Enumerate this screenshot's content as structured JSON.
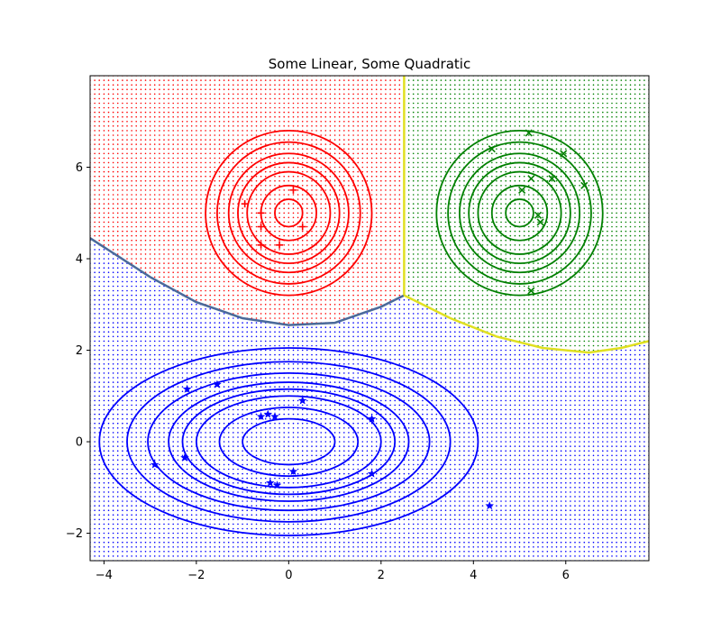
{
  "chart_data": {
    "type": "scatter",
    "title": "Some Linear, Some Quadratic",
    "xlabel": "",
    "ylabel": "",
    "xlim": [
      -4.3,
      7.8
    ],
    "ylim": [
      -2.6,
      8.0
    ],
    "x_ticks": [
      -4,
      -2,
      0,
      2,
      4,
      6
    ],
    "y_ticks": [
      -2,
      0,
      2,
      4,
      6
    ],
    "x_tick_labels": [
      "−4",
      "−2",
      "0",
      "2",
      "4",
      "6"
    ],
    "y_tick_labels": [
      "−2",
      "0",
      "2",
      "4",
      "6"
    ],
    "grid": false,
    "regions": [
      {
        "class": "red",
        "color": "#ff0000",
        "description": "upper-left decision region"
      },
      {
        "class": "green",
        "color": "#008000",
        "description": "upper-right decision region"
      },
      {
        "class": "blue",
        "color": "#0000ff",
        "description": "lower decision region"
      }
    ],
    "boundaries": {
      "red_blue": {
        "color": "#4a6a9a",
        "points": [
          [
            -4.3,
            4.45
          ],
          [
            -3.0,
            3.6
          ],
          [
            -2.0,
            3.05
          ],
          [
            -1.0,
            2.7
          ],
          [
            0.0,
            2.55
          ],
          [
            1.0,
            2.6
          ],
          [
            2.0,
            2.95
          ],
          [
            2.5,
            3.2
          ]
        ]
      },
      "red_green": {
        "color": "#e0e020",
        "points": [
          [
            2.5,
            8.0
          ],
          [
            2.5,
            3.2
          ]
        ]
      },
      "green_blue": {
        "color": "#e0e020",
        "points": [
          [
            2.5,
            3.2
          ],
          [
            3.5,
            2.7
          ],
          [
            4.5,
            2.3
          ],
          [
            5.5,
            2.05
          ],
          [
            6.5,
            1.95
          ],
          [
            7.2,
            2.05
          ],
          [
            7.8,
            2.2
          ]
        ]
      }
    },
    "contours": [
      {
        "class": "red",
        "color": "#ff0000",
        "center": [
          0,
          5
        ],
        "rx": [
          0.3,
          0.6,
          0.9,
          1.1,
          1.3,
          1.55,
          1.8
        ],
        "ry": [
          0.3,
          0.6,
          0.9,
          1.1,
          1.3,
          1.55,
          1.8
        ]
      },
      {
        "class": "green",
        "color": "#008000",
        "center": [
          5,
          5
        ],
        "rx": [
          0.3,
          0.6,
          0.9,
          1.1,
          1.3,
          1.55,
          1.8
        ],
        "ry": [
          0.3,
          0.6,
          0.9,
          1.1,
          1.3,
          1.55,
          1.8
        ]
      },
      {
        "class": "blue",
        "color": "#0000ff",
        "center": [
          0,
          0
        ],
        "rx": [
          1.0,
          1.5,
          2.0,
          2.3,
          2.6,
          3.05,
          3.5,
          4.1
        ],
        "ry": [
          0.5,
          0.75,
          1.0,
          1.15,
          1.3,
          1.5,
          1.75,
          2.05
        ]
      }
    ],
    "series": [
      {
        "class": "red",
        "marker": "plus",
        "color": "#ff0000",
        "points": [
          [
            -0.95,
            5.2
          ],
          [
            -0.6,
            5.0
          ],
          [
            -0.6,
            4.7
          ],
          [
            -0.6,
            4.3
          ],
          [
            -0.2,
            4.3
          ],
          [
            0.1,
            5.5
          ],
          [
            0.3,
            4.7
          ]
        ]
      },
      {
        "class": "green",
        "marker": "x",
        "color": "#008000",
        "points": [
          [
            4.4,
            6.4
          ],
          [
            5.2,
            6.75
          ],
          [
            5.95,
            6.3
          ],
          [
            5.25,
            5.75
          ],
          [
            5.7,
            5.75
          ],
          [
            6.4,
            5.6
          ],
          [
            5.05,
            5.5
          ],
          [
            5.4,
            4.95
          ],
          [
            5.45,
            4.8
          ],
          [
            5.25,
            3.3
          ]
        ]
      },
      {
        "class": "blue",
        "marker": "star",
        "color": "#0000ff",
        "points": [
          [
            -2.2,
            1.15
          ],
          [
            -1.55,
            1.25
          ],
          [
            0.3,
            0.9
          ],
          [
            -0.6,
            0.55
          ],
          [
            -0.45,
            0.6
          ],
          [
            -0.3,
            0.55
          ],
          [
            1.8,
            0.5
          ],
          [
            -2.9,
            -0.5
          ],
          [
            -2.25,
            -0.35
          ],
          [
            0.1,
            -0.65
          ],
          [
            -0.4,
            -0.9
          ],
          [
            -0.25,
            -0.95
          ],
          [
            1.8,
            -0.7
          ],
          [
            4.35,
            -1.4
          ]
        ]
      }
    ]
  }
}
